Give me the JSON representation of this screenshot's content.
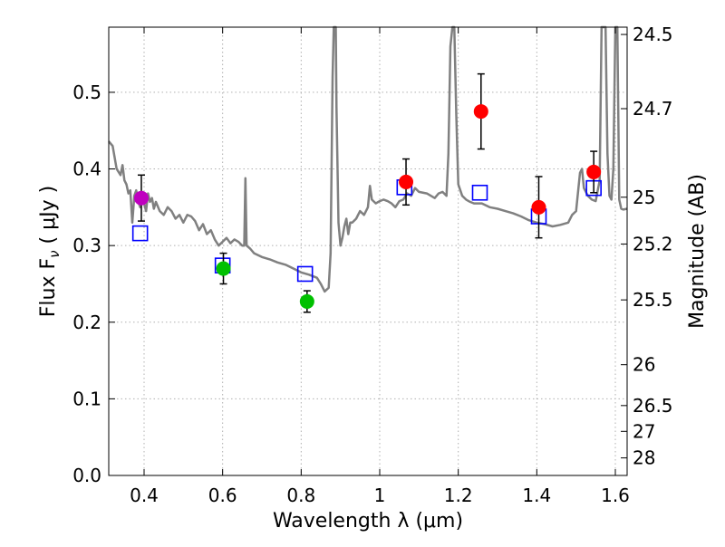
{
  "chart_data": {
    "type": "scatter",
    "xlabel": "Wavelength  λ (μm)",
    "ylabel": "Flux  F",
    "ylabel_sub": "ν",
    "ylabel_unit": " ( μJy )",
    "ylabel_right": "Magnitude (AB)",
    "xlim": [
      0.31,
      1.63
    ],
    "ylim": [
      0.0,
      0.585
    ],
    "xticks": [
      {
        "value": 0.4,
        "label": "0.4"
      },
      {
        "value": 0.6,
        "label": "0.6"
      },
      {
        "value": 0.8,
        "label": "0.8"
      },
      {
        "value": 1.0,
        "label": "1"
      },
      {
        "value": 1.2,
        "label": "1.2"
      },
      {
        "value": 1.4,
        "label": "1.4"
      },
      {
        "value": 1.6,
        "label": "1.6"
      }
    ],
    "yticks": [
      {
        "value": 0.0,
        "label": "0.0"
      },
      {
        "value": 0.1,
        "label": "0.1"
      },
      {
        "value": 0.2,
        "label": "0.2"
      },
      {
        "value": 0.3,
        "label": "0.3"
      },
      {
        "value": 0.4,
        "label": "0.4"
      },
      {
        "value": 0.5,
        "label": "0.5"
      }
    ],
    "right_ticks": [
      {
        "value": 24.5,
        "label": "24.5"
      },
      {
        "value": 24.7,
        "label": "24.7"
      },
      {
        "value": 25.0,
        "label": "25"
      },
      {
        "value": 25.2,
        "label": "25.2"
      },
      {
        "value": 25.5,
        "label": "25.5"
      },
      {
        "value": 26.0,
        "label": "26"
      },
      {
        "value": 26.5,
        "label": "26.5"
      },
      {
        "value": 27.0,
        "label": "27"
      },
      {
        "value": 28.0,
        "label": "28"
      }
    ],
    "grid": true,
    "colors": {
      "spectrum": "#808080",
      "model": "#0000ff",
      "errorbar": "#000000",
      "grid": "#b0b0b0"
    },
    "observed": [
      {
        "x": 0.393,
        "y": 0.362,
        "err": 0.03,
        "color": "#bf00bf"
      },
      {
        "x": 0.602,
        "y": 0.27,
        "err": 0.02,
        "color": "#00c000"
      },
      {
        "x": 0.815,
        "y": 0.227,
        "err": 0.014,
        "color": "#00c000"
      },
      {
        "x": 1.067,
        "y": 0.383,
        "err": 0.03,
        "color": "#ff0000"
      },
      {
        "x": 1.258,
        "y": 0.475,
        "err": 0.049,
        "color": "#ff0000"
      },
      {
        "x": 1.405,
        "y": 0.35,
        "err": 0.04,
        "color": "#ff0000"
      },
      {
        "x": 1.545,
        "y": 0.396,
        "err": 0.027,
        "color": "#ff0000"
      }
    ],
    "model_points": [
      {
        "x": 0.39,
        "y": 0.316
      },
      {
        "x": 0.6,
        "y": 0.274
      },
      {
        "x": 0.81,
        "y": 0.263
      },
      {
        "x": 1.063,
        "y": 0.376
      },
      {
        "x": 1.255,
        "y": 0.369
      },
      {
        "x": 1.405,
        "y": 0.338
      },
      {
        "x": 1.545,
        "y": 0.375
      }
    ],
    "spectrum": [
      [
        0.31,
        0.436
      ],
      [
        0.32,
        0.43
      ],
      [
        0.33,
        0.4
      ],
      [
        0.34,
        0.392
      ],
      [
        0.345,
        0.405
      ],
      [
        0.35,
        0.385
      ],
      [
        0.355,
        0.38
      ],
      [
        0.36,
        0.368
      ],
      [
        0.365,
        0.372
      ],
      [
        0.37,
        0.33
      ],
      [
        0.375,
        0.365
      ],
      [
        0.38,
        0.372
      ],
      [
        0.385,
        0.358
      ],
      [
        0.39,
        0.35
      ],
      [
        0.395,
        0.365
      ],
      [
        0.4,
        0.355
      ],
      [
        0.405,
        0.345
      ],
      [
        0.41,
        0.368
      ],
      [
        0.415,
        0.357
      ],
      [
        0.42,
        0.362
      ],
      [
        0.425,
        0.348
      ],
      [
        0.43,
        0.357
      ],
      [
        0.44,
        0.345
      ],
      [
        0.45,
        0.34
      ],
      [
        0.46,
        0.35
      ],
      [
        0.47,
        0.345
      ],
      [
        0.48,
        0.335
      ],
      [
        0.49,
        0.34
      ],
      [
        0.5,
        0.33
      ],
      [
        0.51,
        0.34
      ],
      [
        0.52,
        0.338
      ],
      [
        0.53,
        0.332
      ],
      [
        0.54,
        0.32
      ],
      [
        0.55,
        0.328
      ],
      [
        0.56,
        0.315
      ],
      [
        0.57,
        0.32
      ],
      [
        0.58,
        0.308
      ],
      [
        0.59,
        0.3
      ],
      [
        0.6,
        0.305
      ],
      [
        0.61,
        0.31
      ],
      [
        0.62,
        0.303
      ],
      [
        0.63,
        0.308
      ],
      [
        0.64,
        0.305
      ],
      [
        0.65,
        0.3
      ],
      [
        0.655,
        0.3
      ],
      [
        0.658,
        0.388
      ],
      [
        0.661,
        0.3
      ],
      [
        0.67,
        0.296
      ],
      [
        0.68,
        0.29
      ],
      [
        0.7,
        0.285
      ],
      [
        0.72,
        0.282
      ],
      [
        0.74,
        0.278
      ],
      [
        0.76,
        0.275
      ],
      [
        0.78,
        0.27
      ],
      [
        0.8,
        0.265
      ],
      [
        0.82,
        0.262
      ],
      [
        0.84,
        0.258
      ],
      [
        0.85,
        0.25
      ],
      [
        0.86,
        0.24
      ],
      [
        0.87,
        0.245
      ],
      [
        0.875,
        0.29
      ],
      [
        0.88,
        0.52
      ],
      [
        0.883,
        0.585
      ],
      [
        0.888,
        0.585
      ],
      [
        0.89,
        0.48
      ],
      [
        0.895,
        0.33
      ],
      [
        0.9,
        0.3
      ],
      [
        0.905,
        0.31
      ],
      [
        0.91,
        0.325
      ],
      [
        0.915,
        0.335
      ],
      [
        0.92,
        0.315
      ],
      [
        0.925,
        0.33
      ],
      [
        0.93,
        0.33
      ],
      [
        0.94,
        0.335
      ],
      [
        0.95,
        0.345
      ],
      [
        0.96,
        0.34
      ],
      [
        0.97,
        0.35
      ],
      [
        0.975,
        0.378
      ],
      [
        0.98,
        0.36
      ],
      [
        0.99,
        0.355
      ],
      [
        1.0,
        0.358
      ],
      [
        1.01,
        0.36
      ],
      [
        1.02,
        0.358
      ],
      [
        1.03,
        0.355
      ],
      [
        1.04,
        0.35
      ],
      [
        1.05,
        0.358
      ],
      [
        1.06,
        0.36
      ],
      [
        1.07,
        0.368
      ],
      [
        1.08,
        0.365
      ],
      [
        1.09,
        0.375
      ],
      [
        1.1,
        0.37
      ],
      [
        1.12,
        0.368
      ],
      [
        1.14,
        0.362
      ],
      [
        1.15,
        0.368
      ],
      [
        1.16,
        0.37
      ],
      [
        1.17,
        0.365
      ],
      [
        1.175,
        0.42
      ],
      [
        1.18,
        0.56
      ],
      [
        1.185,
        0.585
      ],
      [
        1.19,
        0.585
      ],
      [
        1.195,
        0.47
      ],
      [
        1.2,
        0.38
      ],
      [
        1.21,
        0.365
      ],
      [
        1.22,
        0.36
      ],
      [
        1.23,
        0.357
      ],
      [
        1.24,
        0.355
      ],
      [
        1.26,
        0.355
      ],
      [
        1.28,
        0.35
      ],
      [
        1.3,
        0.348
      ],
      [
        1.32,
        0.345
      ],
      [
        1.34,
        0.342
      ],
      [
        1.36,
        0.338
      ],
      [
        1.38,
        0.333
      ],
      [
        1.4,
        0.33
      ],
      [
        1.42,
        0.328
      ],
      [
        1.44,
        0.325
      ],
      [
        1.46,
        0.327
      ],
      [
        1.48,
        0.33
      ],
      [
        1.49,
        0.34
      ],
      [
        1.5,
        0.345
      ],
      [
        1.51,
        0.395
      ],
      [
        1.515,
        0.4
      ],
      [
        1.52,
        0.375
      ],
      [
        1.53,
        0.365
      ],
      [
        1.54,
        0.36
      ],
      [
        1.55,
        0.358
      ],
      [
        1.56,
        0.385
      ],
      [
        1.565,
        0.585
      ],
      [
        1.575,
        0.585
      ],
      [
        1.58,
        0.42
      ],
      [
        1.585,
        0.365
      ],
      [
        1.59,
        0.36
      ],
      [
        1.595,
        0.4
      ],
      [
        1.6,
        0.585
      ],
      [
        1.605,
        0.585
      ],
      [
        1.61,
        0.36
      ],
      [
        1.615,
        0.348
      ],
      [
        1.62,
        0.347
      ],
      [
        1.63,
        0.348
      ]
    ]
  }
}
